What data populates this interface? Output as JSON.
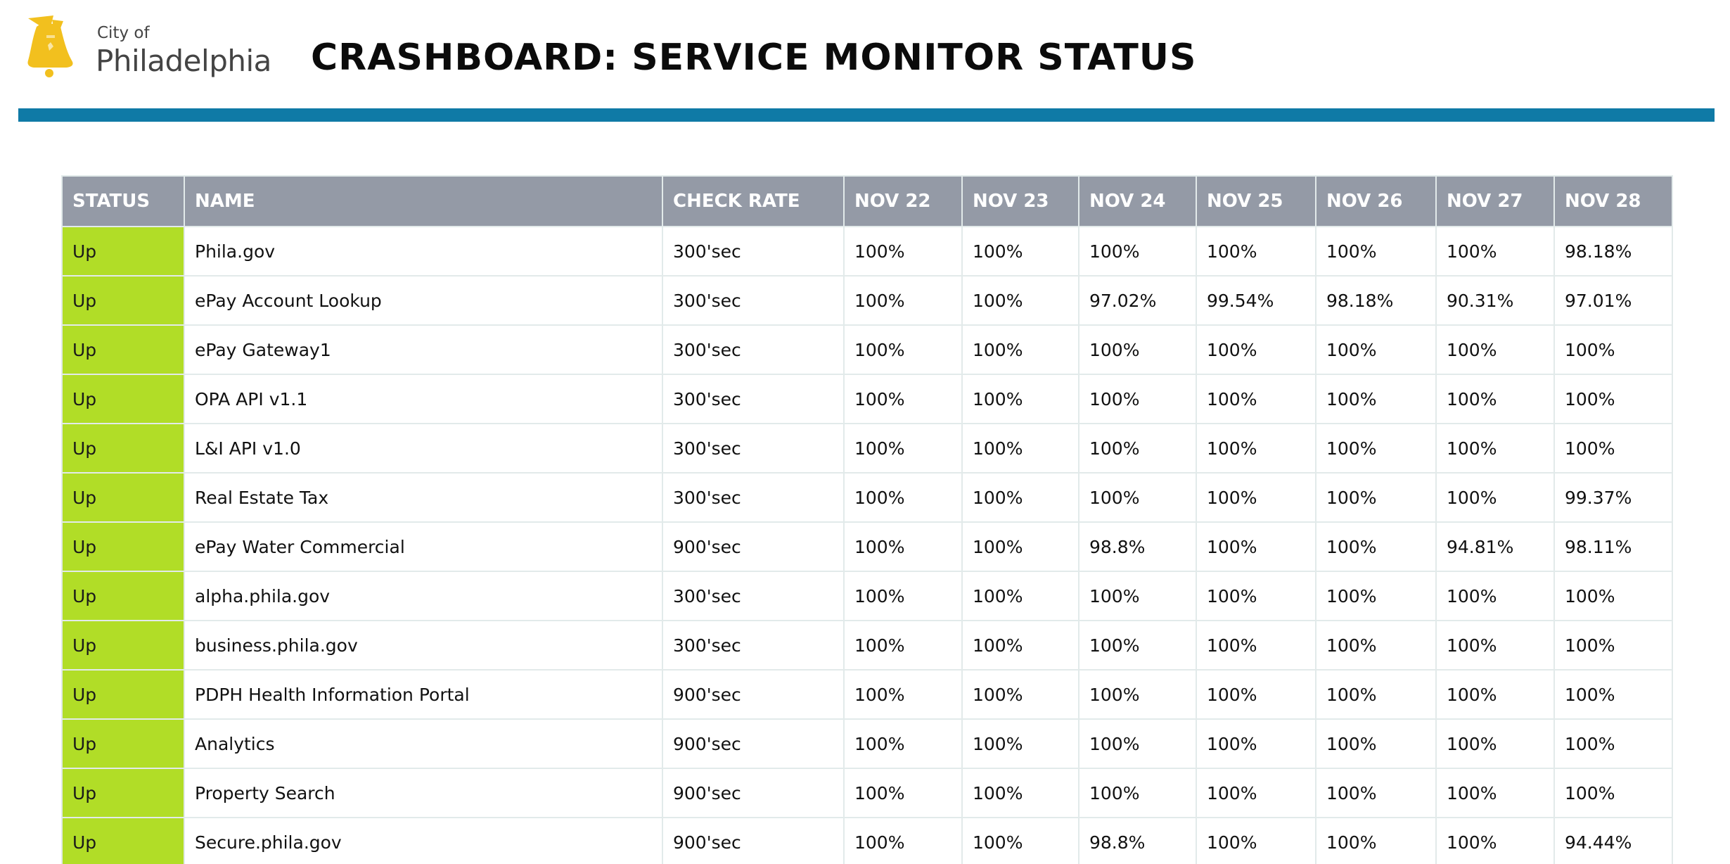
{
  "header": {
    "logo_city": "City of",
    "logo_name": "Philadelphia",
    "title": "CRASHBOARD: SERVICE MONITOR STATUS"
  },
  "colors": {
    "accent_bar": "#0f7aa6",
    "header_row": "#949aa6",
    "status_up": "#b1dd27",
    "logo_gold": "#f2c01e"
  },
  "icons": {
    "logo": "liberty-bell-icon"
  },
  "table": {
    "columns": [
      "STATUS",
      "NAME",
      "CHECK RATE",
      "NOV 22",
      "NOV 23",
      "NOV 24",
      "NOV 25",
      "NOV 26",
      "NOV 27",
      "NOV 28"
    ],
    "rows": [
      {
        "status": "Up",
        "name": "Phila.gov",
        "check_rate": "300'sec",
        "days": [
          "100%",
          "100%",
          "100%",
          "100%",
          "100%",
          "100%",
          "98.18%"
        ]
      },
      {
        "status": "Up",
        "name": "ePay Account Lookup",
        "check_rate": "300'sec",
        "days": [
          "100%",
          "100%",
          "97.02%",
          "99.54%",
          "98.18%",
          "90.31%",
          "97.01%"
        ]
      },
      {
        "status": "Up",
        "name": "ePay Gateway1",
        "check_rate": "300'sec",
        "days": [
          "100%",
          "100%",
          "100%",
          "100%",
          "100%",
          "100%",
          "100%"
        ]
      },
      {
        "status": "Up",
        "name": "OPA API v1.1",
        "check_rate": "300'sec",
        "days": [
          "100%",
          "100%",
          "100%",
          "100%",
          "100%",
          "100%",
          "100%"
        ]
      },
      {
        "status": "Up",
        "name": "L&I API v1.0",
        "check_rate": "300'sec",
        "days": [
          "100%",
          "100%",
          "100%",
          "100%",
          "100%",
          "100%",
          "100%"
        ]
      },
      {
        "status": "Up",
        "name": "Real Estate Tax",
        "check_rate": "300'sec",
        "days": [
          "100%",
          "100%",
          "100%",
          "100%",
          "100%",
          "100%",
          "99.37%"
        ]
      },
      {
        "status": "Up",
        "name": "ePay Water Commercial",
        "check_rate": "900'sec",
        "days": [
          "100%",
          "100%",
          "98.8%",
          "100%",
          "100%",
          "94.81%",
          "98.11%"
        ]
      },
      {
        "status": "Up",
        "name": "alpha.phila.gov",
        "check_rate": "300'sec",
        "days": [
          "100%",
          "100%",
          "100%",
          "100%",
          "100%",
          "100%",
          "100%"
        ]
      },
      {
        "status": "Up",
        "name": "business.phila.gov",
        "check_rate": "300'sec",
        "days": [
          "100%",
          "100%",
          "100%",
          "100%",
          "100%",
          "100%",
          "100%"
        ]
      },
      {
        "status": "Up",
        "name": "PDPH Health Information Portal",
        "check_rate": "900'sec",
        "days": [
          "100%",
          "100%",
          "100%",
          "100%",
          "100%",
          "100%",
          "100%"
        ]
      },
      {
        "status": "Up",
        "name": "Analytics",
        "check_rate": "900'sec",
        "days": [
          "100%",
          "100%",
          "100%",
          "100%",
          "100%",
          "100%",
          "100%"
        ]
      },
      {
        "status": "Up",
        "name": "Property Search",
        "check_rate": "900'sec",
        "days": [
          "100%",
          "100%",
          "100%",
          "100%",
          "100%",
          "100%",
          "100%"
        ]
      },
      {
        "status": "Up",
        "name": "Secure.phila.gov",
        "check_rate": "900'sec",
        "days": [
          "100%",
          "100%",
          "98.8%",
          "100%",
          "100%",
          "100%",
          "94.44%"
        ]
      }
    ]
  }
}
